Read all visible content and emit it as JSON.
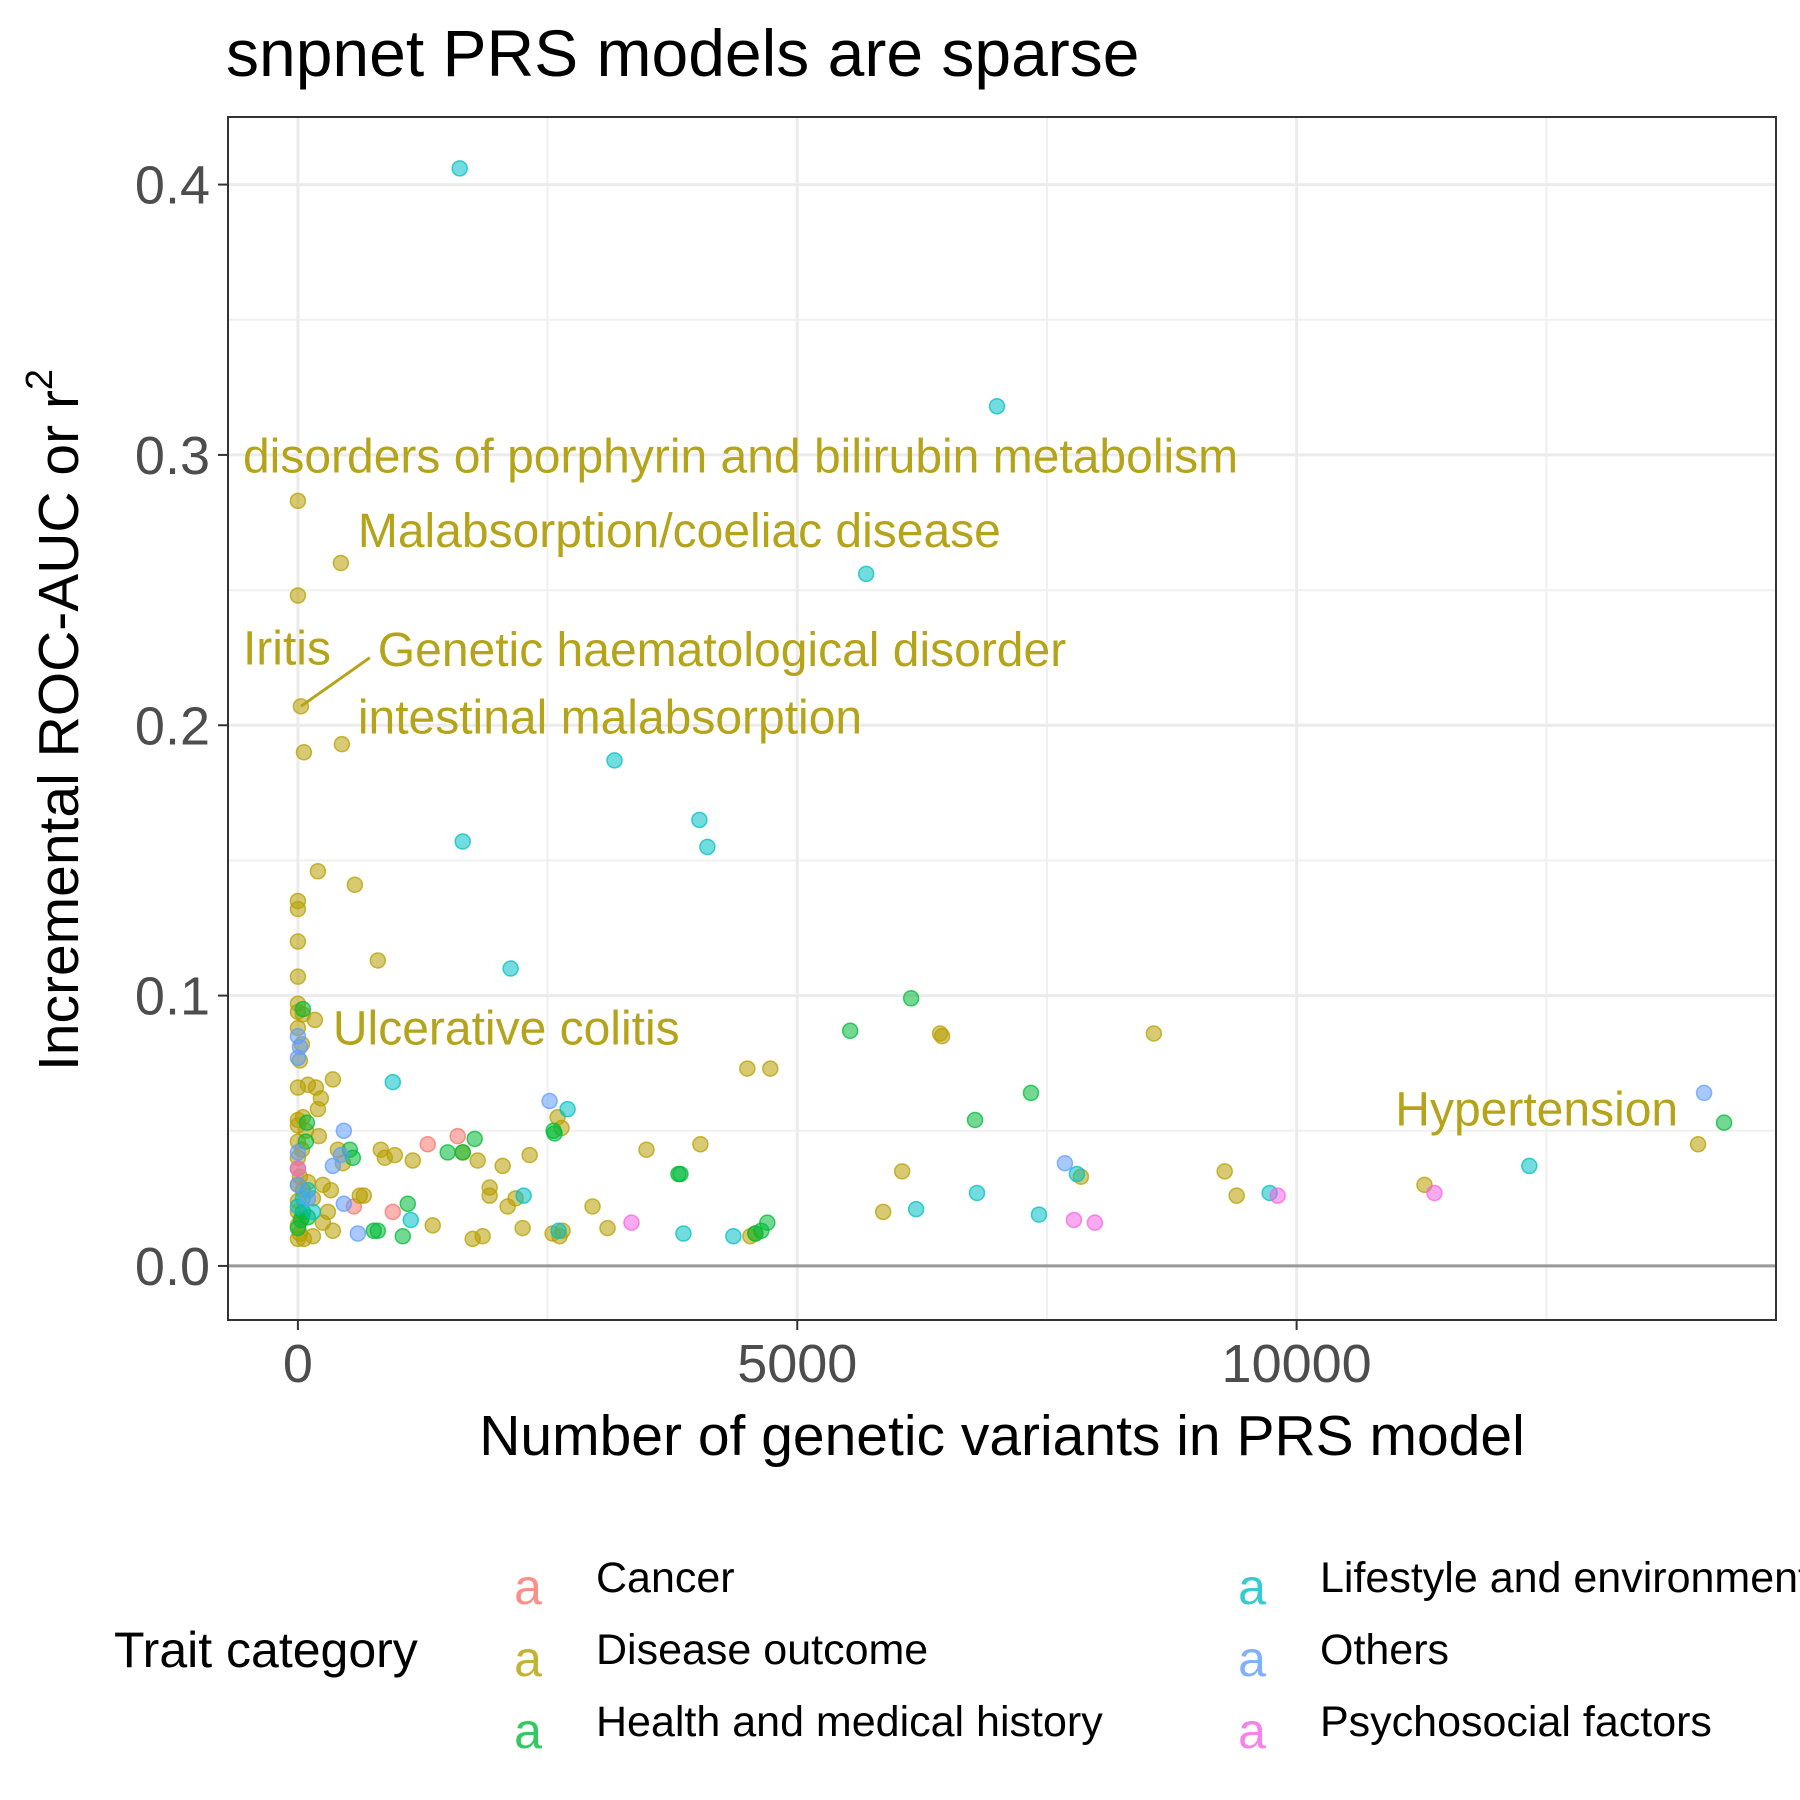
{
  "chart_data": {
    "type": "scatter",
    "title": "snpnet PRS models are sparse",
    "xlabel": "Number of genetic variants in PRS model",
    "ylabel": "Incremental ROC-AUC or r",
    "ylabel_superscript": "2",
    "xlim": [
      -700,
      14800
    ],
    "ylim": [
      -0.02,
      0.425
    ],
    "x_ticks": [
      0,
      5000,
      10000
    ],
    "x_tick_labels": [
      "0",
      "5000",
      "10000"
    ],
    "y_ticks": [
      0.0,
      0.1,
      0.2,
      0.3,
      0.4
    ],
    "y_tick_labels": [
      "0.0",
      "0.1",
      "0.2",
      "0.3",
      "0.4"
    ],
    "x_minor_ticks": [
      2500,
      7500,
      12500
    ],
    "y_minor_ticks": [
      0.05,
      0.15,
      0.25,
      0.35
    ],
    "grid": true,
    "reference_line_y": 0,
    "legend": {
      "title": "Trait category",
      "position": "bottom",
      "key_glyph": "a"
    },
    "series": [
      {
        "name": "Cancer",
        "color": "#F8766D",
        "points": [
          [
            1300,
            0.045
          ],
          [
            1600,
            0.048
          ],
          [
            560,
            0.022
          ],
          [
            950,
            0.02
          ]
        ]
      },
      {
        "name": "Disease outcome",
        "color": "#B79F00",
        "points": [
          [
            0,
            0.283
          ],
          [
            0,
            0.248
          ],
          [
            430,
            0.26
          ],
          [
            30,
            0.207
          ],
          [
            60,
            0.19
          ],
          [
            440,
            0.193
          ],
          [
            200,
            0.146
          ],
          [
            570,
            0.141
          ],
          [
            0,
            0.135
          ],
          [
            0,
            0.132
          ],
          [
            0,
            0.12
          ],
          [
            0,
            0.107
          ],
          [
            0,
            0.097
          ],
          [
            0,
            0.094
          ],
          [
            50,
            0.093
          ],
          [
            170,
            0.091
          ],
          [
            0,
            0.088
          ],
          [
            40,
            0.082
          ],
          [
            20,
            0.076
          ],
          [
            800,
            0.113
          ],
          [
            4500,
            0.073
          ],
          [
            4730,
            0.073
          ],
          [
            6430,
            0.086
          ],
          [
            6450,
            0.085
          ],
          [
            8570,
            0.086
          ],
          [
            0,
            0.066
          ],
          [
            100,
            0.067
          ],
          [
            180,
            0.066
          ],
          [
            230,
            0.062
          ],
          [
            200,
            0.058
          ],
          [
            350,
            0.069
          ],
          [
            0,
            0.054
          ],
          [
            0,
            0.052
          ],
          [
            50,
            0.055
          ],
          [
            80,
            0.05
          ],
          [
            0,
            0.046
          ],
          [
            40,
            0.043
          ],
          [
            0,
            0.04
          ],
          [
            0,
            0.036
          ],
          [
            20,
            0.033
          ],
          [
            0,
            0.03
          ],
          [
            50,
            0.028
          ],
          [
            0,
            0.024
          ],
          [
            0,
            0.02
          ],
          [
            40,
            0.018
          ],
          [
            0,
            0.015
          ],
          [
            20,
            0.012
          ],
          [
            0,
            0.01
          ],
          [
            60,
            0.01
          ],
          [
            150,
            0.011
          ],
          [
            250,
            0.016
          ],
          [
            350,
            0.013
          ],
          [
            100,
            0.031
          ],
          [
            150,
            0.025
          ],
          [
            250,
            0.03
          ],
          [
            330,
            0.028
          ],
          [
            300,
            0.02
          ],
          [
            210,
            0.048
          ],
          [
            400,
            0.043
          ],
          [
            450,
            0.038
          ],
          [
            620,
            0.026
          ],
          [
            660,
            0.026
          ],
          [
            830,
            0.043
          ],
          [
            870,
            0.04
          ],
          [
            970,
            0.041
          ],
          [
            1150,
            0.039
          ],
          [
            1350,
            0.015
          ],
          [
            1650,
            0.042
          ],
          [
            1800,
            0.039
          ],
          [
            1750,
            0.01
          ],
          [
            1850,
            0.011
          ],
          [
            1920,
            0.029
          ],
          [
            2050,
            0.037
          ],
          [
            2100,
            0.022
          ],
          [
            2180,
            0.025
          ],
          [
            2250,
            0.014
          ],
          [
            2320,
            0.041
          ],
          [
            2550,
            0.012
          ],
          [
            2620,
            0.011
          ],
          [
            2600,
            0.055
          ],
          [
            2640,
            0.051
          ],
          [
            2650,
            0.013
          ],
          [
            2950,
            0.022
          ],
          [
            3100,
            0.014
          ],
          [
            3490,
            0.043
          ],
          [
            4030,
            0.045
          ],
          [
            4530,
            0.011
          ],
          [
            4580,
            0.012
          ],
          [
            5860,
            0.02
          ],
          [
            6050,
            0.035
          ],
          [
            7840,
            0.033
          ],
          [
            9280,
            0.035
          ],
          [
            9400,
            0.026
          ],
          [
            11280,
            0.03
          ],
          [
            14020,
            0.045
          ],
          [
            1920,
            0.026
          ]
        ]
      },
      {
        "name": "Health and medical history",
        "color": "#00BA38",
        "points": [
          [
            6140,
            0.099
          ],
          [
            5530,
            0.087
          ],
          [
            7340,
            0.064
          ],
          [
            6780,
            0.054
          ],
          [
            14280,
            0.053
          ],
          [
            50,
            0.095
          ],
          [
            90,
            0.053
          ],
          [
            80,
            0.046
          ],
          [
            520,
            0.043
          ],
          [
            550,
            0.04
          ],
          [
            1500,
            0.042
          ],
          [
            1650,
            0.042
          ],
          [
            1770,
            0.047
          ],
          [
            2560,
            0.05
          ],
          [
            2570,
            0.049
          ],
          [
            3810,
            0.034
          ],
          [
            3830,
            0.034
          ],
          [
            4580,
            0.012
          ],
          [
            4640,
            0.013
          ],
          [
            4700,
            0.016
          ],
          [
            760,
            0.013
          ],
          [
            800,
            0.013
          ],
          [
            1050,
            0.011
          ],
          [
            1100,
            0.023
          ],
          [
            50,
            0.02
          ],
          [
            30,
            0.017
          ],
          [
            100,
            0.018
          ],
          [
            0,
            0.014
          ]
        ]
      },
      {
        "name": "Lifestyle and environment",
        "color": "#00BFC4",
        "points": [
          [
            1620,
            0.406
          ],
          [
            7000,
            0.318
          ],
          [
            5690,
            0.256
          ],
          [
            3170,
            0.187
          ],
          [
            4020,
            0.165
          ],
          [
            4100,
            0.155
          ],
          [
            1650,
            0.157
          ],
          [
            2130,
            0.11
          ],
          [
            950,
            0.068
          ],
          [
            2700,
            0.058
          ],
          [
            12330,
            0.037
          ],
          [
            7800,
            0.034
          ],
          [
            6800,
            0.027
          ],
          [
            7420,
            0.019
          ],
          [
            6190,
            0.021
          ],
          [
            3860,
            0.012
          ],
          [
            4360,
            0.011
          ],
          [
            9730,
            0.027
          ],
          [
            2260,
            0.026
          ],
          [
            2610,
            0.013
          ],
          [
            1130,
            0.017
          ],
          [
            50,
            0.025
          ],
          [
            100,
            0.028
          ],
          [
            0,
            0.022
          ],
          [
            150,
            0.02
          ]
        ]
      },
      {
        "name": "Others",
        "color": "#619CFF",
        "points": [
          [
            14080,
            0.064
          ],
          [
            2520,
            0.061
          ],
          [
            460,
            0.05
          ],
          [
            7680,
            0.038
          ],
          [
            430,
            0.041
          ],
          [
            460,
            0.023
          ],
          [
            600,
            0.012
          ],
          [
            0,
            0.085
          ],
          [
            20,
            0.081
          ],
          [
            0,
            0.077
          ],
          [
            0,
            0.042
          ],
          [
            0,
            0.03
          ],
          [
            100,
            0.025
          ],
          [
            350,
            0.037
          ]
        ]
      },
      {
        "name": "Psychosocial factors",
        "color": "#F564E3",
        "points": [
          [
            3340,
            0.016
          ],
          [
            7770,
            0.017
          ],
          [
            7980,
            0.016
          ],
          [
            9810,
            0.026
          ],
          [
            11380,
            0.027
          ],
          [
            0,
            0.036
          ]
        ]
      }
    ],
    "annotations": [
      {
        "text": "disorders of porphyrin and bilirubin metabolism",
        "x": -550,
        "y": 0.2935,
        "anchor": "start"
      },
      {
        "text": "Malabsorption/coeliac disease",
        "x": 600,
        "y": 0.266,
        "anchor": "start"
      },
      {
        "text": "Iritis",
        "x": -550,
        "y": 0.2225,
        "anchor": "start"
      },
      {
        "text": "Genetic haematological disorder",
        "x": 800,
        "y": 0.222,
        "anchor": "start"
      },
      {
        "text": "intestinal malabsorption",
        "x": 600,
        "y": 0.197,
        "anchor": "start"
      },
      {
        "text": "Ulcerative colitis",
        "x": 350,
        "y": 0.082,
        "anchor": "start"
      },
      {
        "text": "Hypertension",
        "x": 13820,
        "y": 0.052,
        "anchor": "end"
      }
    ],
    "leader_lines": [
      {
        "from": [
          30,
          0.207
        ],
        "to": [
          720,
          0.225
        ]
      }
    ]
  }
}
